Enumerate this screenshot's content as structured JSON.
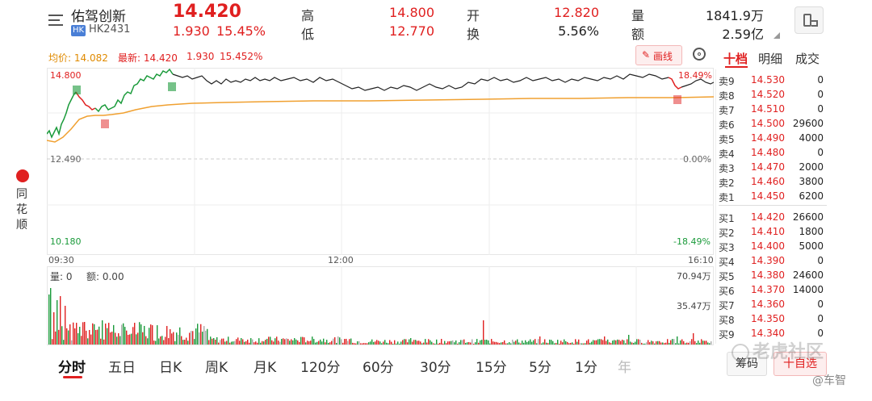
{
  "header": {
    "stock_name": "佑驾创新",
    "market_badge": "HK",
    "stock_code": "HK2431",
    "price": "14.420",
    "change": "1.930",
    "change_pct": "15.45%",
    "high_label": "高",
    "high_value": "14.800",
    "low_label": "低",
    "low_value": "12.770",
    "open_label": "开",
    "open_value": "12.820",
    "turnover_label": "换",
    "turnover_value": "5.56%",
    "volume_label": "量",
    "volume_value": "1841.9万",
    "amount_label": "额",
    "amount_value": "2.59亿"
  },
  "info_line": {
    "avg_label": "均价: 14.082",
    "latest_label": "最新: 14.420",
    "change": "1.930",
    "change_pct": "15.452%",
    "draw_button": "画线"
  },
  "side_tabs": [
    "十档",
    "明细",
    "成交"
  ],
  "brand_vertical": [
    "同",
    "花",
    "顺"
  ],
  "price_axis": {
    "top": "14.800",
    "mid": "12.490",
    "bottom": "10.180",
    "pct_top": "18.49%",
    "pct_mid": "0.00%",
    "pct_bottom": "-18.49%"
  },
  "time_axis": [
    "09:30",
    "12:00",
    "16:10"
  ],
  "volume_panel": {
    "vol_label": "量: 0",
    "amount_label": "额: 0.00",
    "max_label": "70.94万",
    "mid_label": "35.47万"
  },
  "chart_data": {
    "type": "line",
    "x": [
      "09:30",
      "12:00",
      "16:10"
    ],
    "series": [],
    "ylim": [
      10.18,
      14.8
    ],
    "grid": true
  },
  "order_book": {
    "asks": [
      {
        "label": "卖9",
        "price": "14.530",
        "qty": "0"
      },
      {
        "label": "卖8",
        "price": "14.520",
        "qty": "0"
      },
      {
        "label": "卖7",
        "price": "14.510",
        "qty": "0"
      },
      {
        "label": "卖6",
        "price": "14.500",
        "qty": "29600"
      },
      {
        "label": "卖5",
        "price": "14.490",
        "qty": "4000"
      },
      {
        "label": "卖4",
        "price": "14.480",
        "qty": "0"
      },
      {
        "label": "卖3",
        "price": "14.470",
        "qty": "2000"
      },
      {
        "label": "卖2",
        "price": "14.460",
        "qty": "3800"
      },
      {
        "label": "卖1",
        "price": "14.450",
        "qty": "6200"
      }
    ],
    "bids": [
      {
        "label": "买1",
        "price": "14.420",
        "qty": "26600"
      },
      {
        "label": "买2",
        "price": "14.410",
        "qty": "1800"
      },
      {
        "label": "买3",
        "price": "14.400",
        "qty": "5000"
      },
      {
        "label": "买4",
        "price": "14.390",
        "qty": "0"
      },
      {
        "label": "买5",
        "price": "14.380",
        "qty": "24600"
      },
      {
        "label": "买6",
        "price": "14.370",
        "qty": "14000"
      },
      {
        "label": "买7",
        "price": "14.360",
        "qty": "0"
      },
      {
        "label": "买8",
        "price": "14.350",
        "qty": "0"
      },
      {
        "label": "买9",
        "price": "14.340",
        "qty": "0"
      }
    ]
  },
  "period_tabs": [
    "分时",
    "五日",
    "日K",
    "周K",
    "月K",
    "120分",
    "60分",
    "30分",
    "15分",
    "5分",
    "1分",
    "年"
  ],
  "bottom_buttons": {
    "chips": "筹码",
    "add_watch": "十自选"
  },
  "watermark": {
    "community": "老虎社区",
    "author": "@车智"
  },
  "colors": {
    "up": "#e02020",
    "down": "#1a9a3a",
    "avg_line": "#f0a030"
  }
}
